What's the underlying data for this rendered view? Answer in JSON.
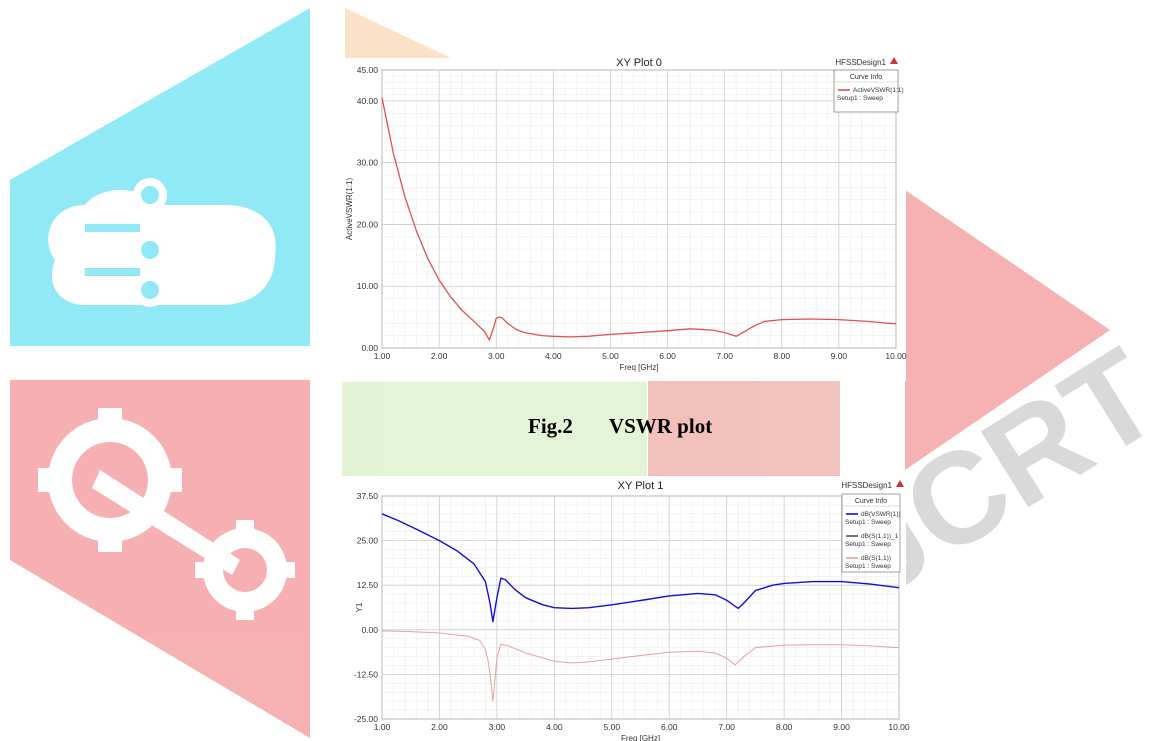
{
  "colors": {
    "watermark_cyan": "#7fe6f5",
    "watermark_pink": "#f5a3a6",
    "watermark_orange": "#fcdcc0",
    "watermark_green": "#dff2cf",
    "watermark_red": "#f0b7b0",
    "plot_red": "#e05050",
    "plot_blue": "#1010d0",
    "plot_pink": "#e8a0a0"
  },
  "icons": [
    "circuit-cloud-icon",
    "gear-logo-icon"
  ],
  "watermark_text": "JCRT",
  "caption": {
    "figure": "Fig.2",
    "title": "VSWR plot"
  },
  "chart_data": [
    {
      "type": "line",
      "title": "XY Plot 0",
      "design_label": "HFSSDesign1",
      "xlabel": "Freq [GHz]",
      "ylabel": "ActiveVSWR(1:1)",
      "xlim": [
        1,
        10
      ],
      "ylim": [
        0,
        45
      ],
      "x_ticks": [
        "1.00",
        "2.00",
        "3.00",
        "4.00",
        "5.00",
        "6.00",
        "7.00",
        "8.00",
        "9.00",
        "10.00"
      ],
      "y_ticks": [
        "0.00",
        "10.00",
        "20.00",
        "30.00",
        "40.00",
        "45.00"
      ],
      "grid": true,
      "legend": {
        "title": "Curve Info",
        "position": "top-right",
        "entries": [
          {
            "name": "ActiveVSWR(1:1)",
            "subtitle": "Setup1 : Sweep"
          }
        ]
      },
      "series": [
        {
          "name": "ActiveVSWR(1:1)",
          "color": "#e05050",
          "x": [
            1.0,
            1.2,
            1.4,
            1.6,
            1.8,
            2.0,
            2.2,
            2.4,
            2.6,
            2.8,
            2.88,
            2.95,
            3.0,
            3.05,
            3.1,
            3.2,
            3.35,
            3.5,
            3.8,
            4.0,
            4.3,
            4.6,
            5.0,
            5.5,
            6.0,
            6.4,
            6.8,
            7.0,
            7.2,
            7.3,
            7.5,
            7.7,
            8.0,
            8.5,
            9.0,
            9.5,
            10.0
          ],
          "y": [
            40.5,
            31.5,
            24.5,
            19.0,
            14.5,
            11.0,
            8.3,
            6.1,
            4.4,
            2.6,
            1.3,
            3.2,
            4.8,
            5.0,
            4.9,
            4.0,
            3.0,
            2.5,
            2.0,
            1.9,
            1.8,
            1.9,
            2.2,
            2.5,
            2.8,
            3.1,
            2.9,
            2.5,
            1.9,
            2.4,
            3.5,
            4.3,
            4.6,
            4.7,
            4.6,
            4.3,
            3.9
          ]
        }
      ]
    },
    {
      "type": "line",
      "title": "XY Plot 1",
      "design_label": "HFSSDesign1",
      "xlabel": "Freq [GHz]",
      "ylabel": "Y1",
      "xlim": [
        1,
        10
      ],
      "ylim": [
        -25,
        37.5
      ],
      "x_ticks": [
        "1.00",
        "2.00",
        "3.00",
        "4.00",
        "5.00",
        "6.00",
        "7.00",
        "8.00",
        "9.00",
        "10.00"
      ],
      "y_ticks": [
        "-25.00",
        "-12.50",
        "0.00",
        "12.50",
        "25.00",
        "37.50"
      ],
      "grid": true,
      "legend": {
        "title": "Curve Info",
        "position": "top-right",
        "entries": [
          {
            "name": "dB(VSWR(1))",
            "subtitle": "Setup1 : Sweep"
          },
          {
            "name": "dB(S(1,1))_1",
            "subtitle": "Setup1 : Sweep"
          },
          {
            "name": "dB(S(1,1))",
            "subtitle": "Setup1 : Sweep"
          }
        ]
      },
      "series": [
        {
          "name": "dB(VSWR(1))",
          "color": "#1010d0",
          "x": [
            1.0,
            1.3,
            1.6,
            2.0,
            2.3,
            2.6,
            2.8,
            2.88,
            2.93,
            3.0,
            3.07,
            3.15,
            3.3,
            3.5,
            3.8,
            4.0,
            4.3,
            4.6,
            5.0,
            5.5,
            6.0,
            6.5,
            6.8,
            7.0,
            7.2,
            7.3,
            7.5,
            7.8,
            8.0,
            8.5,
            9.0,
            9.5,
            10.0
          ],
          "y": [
            32.5,
            30.5,
            28.2,
            25.0,
            22.2,
            18.5,
            13.5,
            7.5,
            2.3,
            9.0,
            14.5,
            14.0,
            11.5,
            9.0,
            7.0,
            6.2,
            6.0,
            6.2,
            7.0,
            8.2,
            9.5,
            10.2,
            9.8,
            8.3,
            6.0,
            7.5,
            11.0,
            12.5,
            13.0,
            13.5,
            13.5,
            12.8,
            11.8
          ]
        },
        {
          "name": "dB(S(1,1))_1",
          "color": "#555555",
          "x": [],
          "y": []
        },
        {
          "name": "dB(S(1,1))",
          "color": "#e8a0a0",
          "x": [
            1.0,
            1.5,
            2.0,
            2.5,
            2.7,
            2.8,
            2.85,
            2.9,
            2.93,
            3.0,
            3.07,
            3.2,
            3.5,
            4.0,
            4.3,
            4.6,
            5.0,
            5.5,
            6.0,
            6.5,
            6.8,
            7.0,
            7.15,
            7.3,
            7.5,
            8.0,
            8.5,
            9.0,
            9.5,
            10.0
          ],
          "y": [
            -0.3,
            -0.5,
            -0.9,
            -1.8,
            -3.0,
            -5.5,
            -9.0,
            -15.0,
            -20.0,
            -8.0,
            -4.0,
            -4.5,
            -6.5,
            -8.8,
            -9.3,
            -9.0,
            -8.2,
            -7.2,
            -6.3,
            -6.0,
            -6.5,
            -8.0,
            -9.8,
            -7.5,
            -5.0,
            -4.3,
            -4.2,
            -4.2,
            -4.5,
            -5.0
          ]
        }
      ]
    }
  ]
}
